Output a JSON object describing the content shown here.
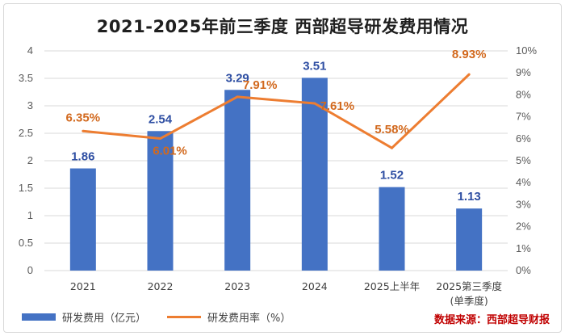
{
  "title": "2021-2025年前三季度 西部超导研发费用情况",
  "source": "数据来源：西部超导财报",
  "colors": {
    "bar": "#4472c4",
    "line": "#ed7d31",
    "bar_label": "#2f4fa3",
    "line_label": "#d2691e",
    "grid": "#d9d9d9"
  },
  "chart_data": {
    "type": "bar",
    "categories": [
      "2021",
      "2022",
      "2023",
      "2024",
      "2025上半年",
      "2025第三季度"
    ],
    "category_sublabels": [
      "",
      "",
      "",
      "",
      "",
      "(单季度)"
    ],
    "series": [
      {
        "name": "研发费用（亿元）",
        "type": "bar",
        "values": [
          1.86,
          2.54,
          3.29,
          3.51,
          1.52,
          1.13
        ],
        "labels": [
          "1.86",
          "2.54",
          "3.29",
          "3.51",
          "1.52",
          "1.13"
        ]
      },
      {
        "name": "研发费用率（%）",
        "type": "line",
        "values": [
          6.35,
          6.01,
          7.91,
          7.61,
          5.58,
          8.93
        ],
        "labels": [
          "6.35%",
          "6.01%",
          "7.91%",
          "7.61%",
          "5.58%",
          "8.93%"
        ]
      }
    ],
    "ylim": [
      0,
      4
    ],
    "y_ticks": [
      "0",
      "0.5",
      "1",
      "1.5",
      "2",
      "2.5",
      "3",
      "3.5",
      "4"
    ],
    "y2lim": [
      0,
      10
    ],
    "y2_ticks": [
      "0%",
      "1%",
      "2%",
      "3%",
      "4%",
      "5%",
      "6%",
      "7%",
      "8%",
      "9%",
      "10%"
    ],
    "grid": true,
    "legend_position": "bottom-left"
  }
}
